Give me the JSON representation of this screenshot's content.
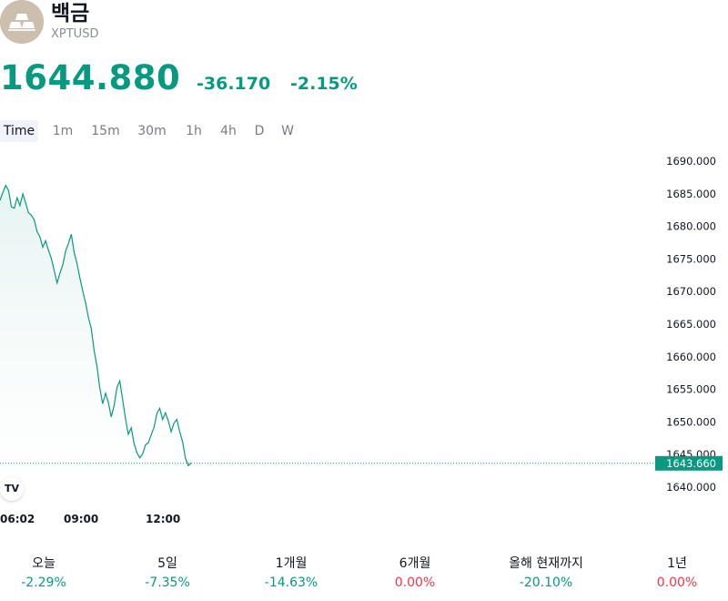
{
  "symbol": {
    "name": "백금",
    "ticker": "XPTUSD",
    "logo_icon": "gold-bars-icon"
  },
  "quote": {
    "price": "1644.880",
    "change": "-36.170",
    "change_percent": "-2.15%"
  },
  "tabs": [
    "Time",
    "1m",
    "15m",
    "30m",
    "1h",
    "4h",
    "D",
    "W"
  ],
  "active_tab": "Time",
  "chart_data": {
    "type": "area",
    "x_tick_labels": [
      "06:02",
      "09:00",
      "12:00"
    ],
    "y_tick_labels": [
      "1690.000",
      "1685.000",
      "1680.000",
      "1675.000",
      "1670.000",
      "1665.000",
      "1660.000",
      "1655.000",
      "1650.000",
      "1645.000",
      "1640.000"
    ],
    "ylim": [
      1640,
      1690
    ],
    "last_price_label": "1643.660",
    "series": [
      {
        "values": [
          1684.0,
          1685.2,
          1686.3,
          1685.5,
          1683.0,
          1682.8,
          1684.4,
          1683.2,
          1685.0,
          1683.6,
          1682.1,
          1681.7,
          1681.0,
          1679.2,
          1678.4,
          1676.8,
          1677.8,
          1676.3,
          1675.1,
          1673.2,
          1671.3,
          1672.8,
          1674.1,
          1676.2,
          1677.4,
          1678.8,
          1676.0,
          1674.3,
          1672.1,
          1670.1,
          1668.3,
          1666.0,
          1664.3,
          1661.0,
          1658.5,
          1655.2,
          1652.8,
          1654.4,
          1653.0,
          1650.8,
          1652.5,
          1655.3,
          1656.3,
          1653.4,
          1650.5,
          1648.1,
          1649.1,
          1646.7,
          1645.3,
          1644.5,
          1645.1,
          1646.5,
          1646.8,
          1648.0,
          1649.2,
          1651.3,
          1652.1,
          1650.4,
          1651.4,
          1650.2,
          1648.5,
          1649.8,
          1650.4,
          1648.5,
          1647.0,
          1644.5,
          1643.3,
          1643.7
        ]
      }
    ],
    "colors": {
      "line": "#089981",
      "fill_top": "#e6f4f1",
      "price_label_bg": "#089981"
    }
  },
  "watermark": "TV",
  "performance": [
    {
      "label": "오늘",
      "value": "-2.29%",
      "kind": "neg"
    },
    {
      "label": "5일",
      "value": "-7.35%",
      "kind": "neg"
    },
    {
      "label": "1개월",
      "value": "-14.63%",
      "kind": "neg"
    },
    {
      "label": "6개월",
      "value": "0.00%",
      "kind": "zero"
    },
    {
      "label": "올해 현재까지",
      "value": "-20.10%",
      "kind": "neg"
    },
    {
      "label": "1년",
      "value": "0.00%",
      "kind": "zero"
    }
  ]
}
